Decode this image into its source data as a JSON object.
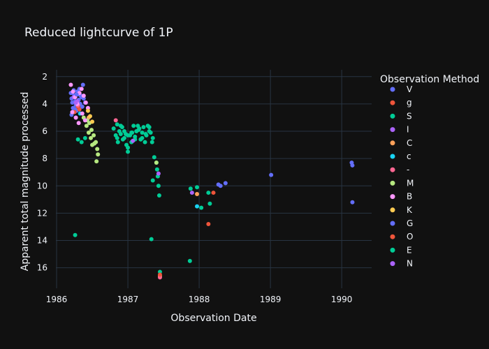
{
  "chart_data": {
    "type": "scatter",
    "title": "Reduced lightcurve of 1P",
    "xlabel": "Observation Date",
    "ylabel": "Apparent total magnitude processed",
    "xlim": [
      1985.99,
      1990.42
    ],
    "ylim": [
      17.5,
      1.5
    ],
    "x_ticks": [
      1986,
      1987,
      1988,
      1989,
      1990
    ],
    "x_tick_labels": [
      "1986",
      "1987",
      "1988",
      "1989",
      "1990"
    ],
    "y_ticks": [
      2,
      4,
      6,
      8,
      10,
      12,
      14,
      16
    ],
    "y_tick_labels": [
      "2",
      "4",
      "6",
      "8",
      "10",
      "12",
      "14",
      "16"
    ],
    "grid": true,
    "legend_position": "right",
    "legend_title": "Observation Method",
    "series": [
      {
        "name": "V",
        "color": "#636EFA",
        "points": [
          [
            1986.2,
            3.2
          ],
          [
            1986.21,
            3.6
          ],
          [
            1986.22,
            3.9
          ],
          [
            1986.23,
            4.3
          ],
          [
            1986.24,
            3.0
          ],
          [
            1986.25,
            3.4
          ],
          [
            1986.26,
            3.8
          ],
          [
            1986.27,
            4.1
          ],
          [
            1986.28,
            4.5
          ],
          [
            1986.29,
            3.1
          ],
          [
            1986.3,
            3.3
          ],
          [
            1986.31,
            3.7
          ],
          [
            1986.33,
            4.0
          ],
          [
            1986.35,
            3.5
          ],
          [
            1986.37,
            2.6
          ],
          [
            1986.22,
            3.2
          ],
          [
            1986.26,
            4.4
          ],
          [
            1986.3,
            3.9
          ],
          [
            1986.34,
            3.4
          ],
          [
            1986.38,
            3.6
          ],
          [
            1986.32,
            2.9
          ],
          [
            1986.24,
            4.6
          ],
          [
            1986.28,
            3.3
          ],
          [
            1986.36,
            4.2
          ],
          [
            1986.4,
            3.9
          ],
          [
            1986.21,
            4.8
          ],
          [
            1986.27,
            5.0
          ]
        ]
      },
      {
        "name": "g",
        "color": "#EF553B",
        "points": [
          [
            1986.25,
            4.6
          ],
          [
            1986.3,
            4.2
          ],
          [
            1988.13,
            12.8
          ],
          [
            1988.2,
            10.5
          ]
        ]
      },
      {
        "name": "S",
        "color": "#00CC96",
        "points": [
          [
            1986.26,
            13.6
          ],
          [
            1986.3,
            6.6
          ],
          [
            1986.35,
            6.8
          ],
          [
            1986.4,
            6.5
          ],
          [
            1986.85,
            6.5
          ],
          [
            1986.9,
            6.2
          ],
          [
            1986.95,
            6.0
          ],
          [
            1987.0,
            6.3
          ],
          [
            1987.05,
            6.1
          ],
          [
            1987.1,
            6.4
          ],
          [
            1987.15,
            5.9
          ],
          [
            1987.2,
            6.5
          ],
          [
            1987.25,
            6.2
          ],
          [
            1987.3,
            6.0
          ],
          [
            1987.35,
            6.5
          ],
          [
            1987.37,
            7.9
          ],
          [
            1987.4,
            8.3
          ],
          [
            1987.41,
            8.8
          ],
          [
            1987.42,
            9.3
          ],
          [
            1987.35,
            9.6
          ],
          [
            1987.43,
            10.0
          ],
          [
            1987.44,
            10.7
          ],
          [
            1987.45,
            16.3
          ],
          [
            1987.33,
            13.9
          ],
          [
            1987.87,
            15.5
          ],
          [
            1987.88,
            10.2
          ],
          [
            1987.97,
            10.1
          ],
          [
            1988.03,
            11.6
          ],
          [
            1988.13,
            10.5
          ],
          [
            1988.15,
            11.3
          ]
        ]
      },
      {
        "name": "I",
        "color": "#AB63FA",
        "points": [
          [
            1986.24,
            3.5
          ],
          [
            1986.29,
            3.8
          ],
          [
            1987.9,
            10.5
          ],
          [
            1987.43,
            9.1
          ]
        ]
      },
      {
        "name": "C",
        "color": "#FFA15A",
        "points": [
          [
            1986.45,
            5.0
          ],
          [
            1987.97,
            10.6
          ],
          [
            1987.45,
            16.6
          ]
        ]
      },
      {
        "name": "c",
        "color": "#19D3F3",
        "points": [
          [
            1986.33,
            4.7
          ],
          [
            1987.97,
            11.5
          ]
        ]
      },
      {
        "name": "-",
        "color": "#FF6692",
        "points": [
          [
            1986.3,
            4.1
          ],
          [
            1986.83,
            5.2
          ],
          [
            1987.45,
            16.7
          ]
        ]
      },
      {
        "name": "M",
        "color": "#B6E880",
        "points": [
          [
            1986.38,
            5.0
          ],
          [
            1986.42,
            5.6
          ],
          [
            1986.45,
            6.1
          ],
          [
            1986.48,
            6.5
          ],
          [
            1986.5,
            7.0
          ],
          [
            1986.52,
            6.3
          ],
          [
            1986.55,
            6.8
          ],
          [
            1986.57,
            7.3
          ],
          [
            1986.58,
            7.7
          ],
          [
            1986.56,
            8.2
          ],
          [
            1986.46,
            5.4
          ],
          [
            1986.49,
            5.9
          ],
          [
            1986.53,
            6.9
          ],
          [
            1986.43,
            5.2
          ],
          [
            1987.4,
            8.3
          ]
        ]
      },
      {
        "name": "B",
        "color": "#FF97FF",
        "points": [
          [
            1986.2,
            2.6
          ],
          [
            1986.23,
            3.1
          ],
          [
            1986.26,
            3.5
          ],
          [
            1986.29,
            4.0
          ],
          [
            1986.32,
            3.2
          ],
          [
            1986.35,
            2.9
          ],
          [
            1986.38,
            3.4
          ],
          [
            1986.41,
            3.9
          ],
          [
            1986.44,
            4.3
          ],
          [
            1986.22,
            4.6
          ],
          [
            1986.27,
            5.0
          ],
          [
            1986.31,
            5.4
          ],
          [
            1986.36,
            4.7
          ],
          [
            1986.4,
            5.2
          ]
        ]
      },
      {
        "name": "K",
        "color": "#FECB52",
        "points": [
          [
            1986.44,
            4.5
          ],
          [
            1986.47,
            4.9
          ],
          [
            1986.5,
            5.3
          ]
        ]
      },
      {
        "name": "G",
        "color": "#636EFA",
        "points": [
          [
            1986.28,
            3.3
          ],
          [
            1988.27,
            9.9
          ],
          [
            1988.3,
            10.0
          ],
          [
            1988.37,
            9.8
          ],
          [
            1989.01,
            9.2
          ],
          [
            1990.14,
            8.3
          ],
          [
            1990.15,
            8.5
          ],
          [
            1990.15,
            11.2
          ]
        ]
      },
      {
        "name": "O",
        "color": "#EF553B",
        "points": [
          [
            1986.32,
            4.4
          ],
          [
            1987.45,
            16.5
          ]
        ]
      },
      {
        "name": "E",
        "color": "#00CC96",
        "points": [
          [
            1986.8,
            5.8
          ],
          [
            1986.85,
            5.5
          ],
          [
            1986.88,
            6.0
          ],
          [
            1986.92,
            5.7
          ],
          [
            1986.95,
            6.5
          ],
          [
            1986.98,
            7.0
          ],
          [
            1987.0,
            7.5
          ],
          [
            1987.05,
            6.8
          ],
          [
            1987.08,
            5.6
          ],
          [
            1987.12,
            6.0
          ],
          [
            1987.16,
            5.8
          ],
          [
            1987.18,
            6.6
          ],
          [
            1987.22,
            5.7
          ],
          [
            1987.26,
            6.3
          ],
          [
            1987.28,
            5.6
          ],
          [
            1987.32,
            6.1
          ],
          [
            1987.34,
            6.8
          ],
          [
            1986.9,
            5.6
          ],
          [
            1986.97,
            6.2
          ],
          [
            1987.03,
            6.3
          ],
          [
            1987.1,
            6.6
          ],
          [
            1987.14,
            5.6
          ],
          [
            1987.2,
            6.1
          ],
          [
            1987.24,
            6.8
          ],
          [
            1987.3,
            5.7
          ],
          [
            1986.86,
            6.8
          ],
          [
            1987.0,
            7.2
          ],
          [
            1987.06,
            6.1
          ],
          [
            1986.83,
            6.3
          ],
          [
            1986.93,
            6.6
          ]
        ]
      },
      {
        "name": "N",
        "color": "#AB63FA",
        "points": [
          [
            1986.27,
            3.9
          ],
          [
            1987.07,
            6.7
          ]
        ]
      }
    ]
  }
}
